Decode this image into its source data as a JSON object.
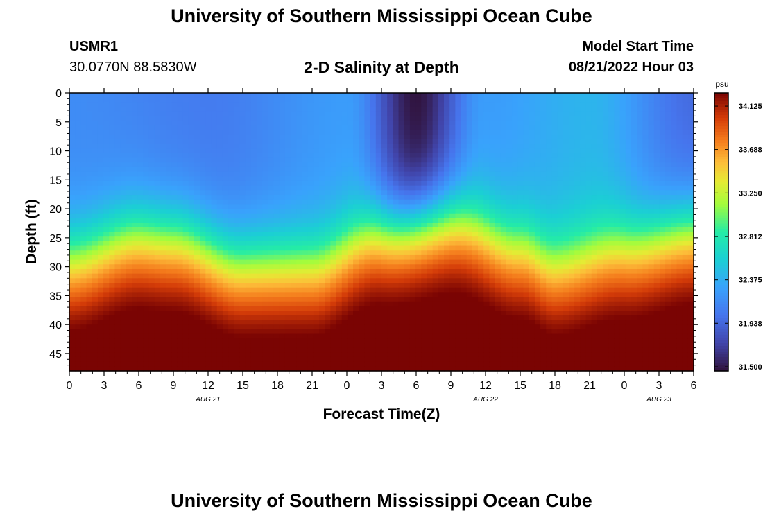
{
  "header": {
    "title": "University of Southern Mississippi Ocean Cube",
    "station_id": "USMR1",
    "station_coords": "30.0770N  88.5830W",
    "chart_title": "2-D Salinity at Depth",
    "model_start_label": "Model Start Time",
    "model_start_time": "08/21/2022 Hour 03"
  },
  "footer": {
    "title": "University of Southern Mississippi Ocean Cube"
  },
  "chart_data": {
    "type": "heatmap",
    "title": "2-D Salinity at Depth",
    "xlabel": "Forecast Time(Z)",
    "ylabel": "Depth (ft)",
    "x_tick_labels": [
      "0",
      "3",
      "6",
      "9",
      "12",
      "15",
      "18",
      "21",
      "0",
      "3",
      "6",
      "9",
      "12",
      "15",
      "18",
      "21",
      "0",
      "3",
      "6"
    ],
    "x_date_labels": [
      {
        "label": "AUG 21",
        "at_tick": 4
      },
      {
        "label": "AUG 22",
        "at_tick": 12
      },
      {
        "label": "AUG 23",
        "at_tick": 17
      }
    ],
    "y_ticks": [
      0,
      5,
      10,
      15,
      20,
      25,
      30,
      35,
      40,
      45
    ],
    "ylim": [
      0,
      48
    ],
    "y_reversed": true,
    "colorbar": {
      "unit": "psu",
      "min": 31.5,
      "max": 34.3,
      "tick_labels": [
        "34.125",
        "33.688",
        "33.250",
        "32.812",
        "32.375",
        "31.938",
        "31.500"
      ],
      "tick_values": [
        34.125,
        33.688,
        33.25,
        32.812,
        32.375,
        31.938,
        31.5
      ]
    },
    "thermocline_depth_ft": [
      {
        "hour": 0,
        "depth": 29
      },
      {
        "hour": 6,
        "depth": 25
      },
      {
        "hour": 9,
        "depth": 25.5
      },
      {
        "hour": 15,
        "depth": 30
      },
      {
        "hour": 21,
        "depth": 30
      },
      {
        "hour": 27,
        "depth": 24
      },
      {
        "hour": 33,
        "depth": 22
      },
      {
        "hour": 39,
        "depth": 27
      },
      {
        "hour": 42,
        "depth": 30
      },
      {
        "hour": 48,
        "depth": 27
      },
      {
        "hour": 54,
        "depth": 24
      }
    ],
    "surface_salinity_psu": [
      {
        "hour": 0,
        "value": 32.2
      },
      {
        "hour": 12,
        "value": 32.1
      },
      {
        "hour": 24,
        "value": 32.3
      },
      {
        "hour": 30,
        "value": 31.5
      },
      {
        "hour": 36,
        "value": 32.3
      },
      {
        "hour": 45,
        "value": 32.45
      },
      {
        "hour": 54,
        "value": 32.0
      }
    ],
    "bottom_salinity_psu": 34.3
  }
}
